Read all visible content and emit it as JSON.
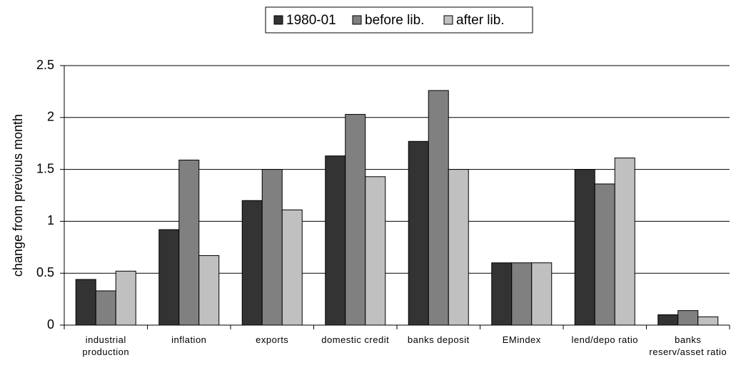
{
  "chart_data": {
    "type": "bar",
    "y_label": "change from previous month",
    "categories": [
      "industrial production",
      "inflation",
      "exports",
      "domestic credit",
      "banks deposit",
      "EMindex",
      "lend/depo ratio",
      "banks reserv/asset ratio"
    ],
    "series": [
      {
        "name": "1980-01",
        "color": "#333333",
        "values": [
          0.44,
          0.92,
          1.2,
          1.63,
          1.77,
          0.6,
          1.5,
          0.1
        ]
      },
      {
        "name": "before lib.",
        "color": "#808080",
        "values": [
          0.33,
          1.59,
          1.5,
          2.03,
          2.26,
          0.6,
          1.36,
          0.14
        ]
      },
      {
        "name": "after lib.",
        "color": "#c0c0c0",
        "values": [
          0.52,
          0.67,
          1.11,
          1.43,
          1.5,
          0.6,
          1.61,
          0.08
        ]
      }
    ],
    "ylim": [
      0,
      2.5
    ],
    "yticks": [
      0,
      0.5,
      1,
      1.5,
      2,
      2.5
    ],
    "grid": true,
    "legend": "top"
  }
}
